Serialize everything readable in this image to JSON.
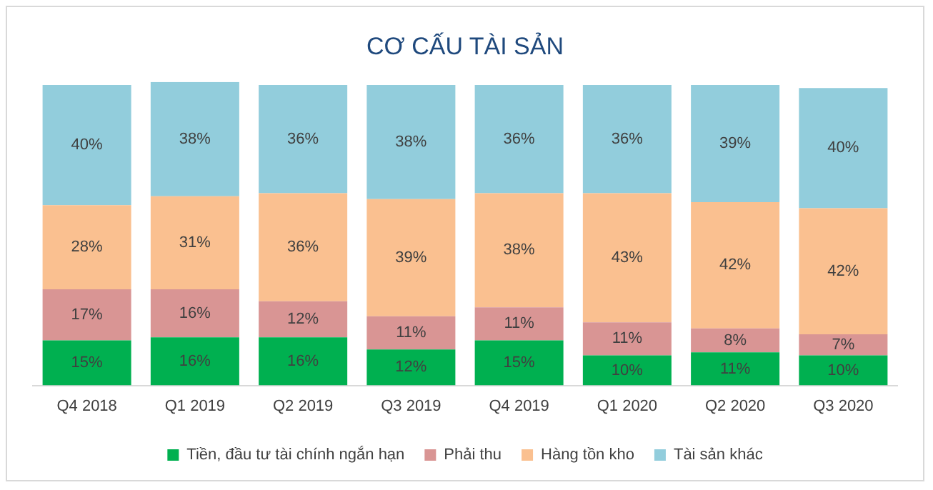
{
  "chart_data": {
    "type": "bar",
    "title": "CƠ CẤU TÀI SẢN",
    "stacked": true,
    "legend": "bottom",
    "grid": false,
    "tick_labels": "x",
    "categories": [
      "Q4 2018",
      "Q1 2019",
      "Q2 2019",
      "Q3 2019",
      "Q4 2019",
      "Q1 2020",
      "Q2 2020",
      "Q3 2020"
    ],
    "series": [
      {
        "name": "Tiền, đầu tư tài chính ngắn hạn",
        "color": "#00b050",
        "values": [
          15,
          16,
          16,
          12,
          15,
          10,
          11,
          10
        ],
        "value_labels": [
          "15%",
          "16%",
          "16%",
          "12%",
          "15%",
          "10%",
          "11%",
          "10%"
        ]
      },
      {
        "name": "Phải thu",
        "color": "#d99594",
        "values": [
          17,
          16,
          12,
          11,
          11,
          11,
          8,
          7
        ],
        "value_labels": [
          "17%",
          "16%",
          "12%",
          "11%",
          "11%",
          "11%",
          "8%",
          "7%"
        ]
      },
      {
        "name": "Hàng tồn kho",
        "color": "#fac090",
        "values": [
          28,
          31,
          36,
          39,
          38,
          43,
          42,
          42
        ],
        "value_labels": [
          "28%",
          "31%",
          "36%",
          "39%",
          "38%",
          "43%",
          "42%",
          "42%"
        ]
      },
      {
        "name": "Tài sản khác",
        "color": "#92cddc",
        "values": [
          40,
          38,
          36,
          38,
          36,
          36,
          39,
          40
        ],
        "value_labels": [
          "40%",
          "38%",
          "36%",
          "38%",
          "36%",
          "36%",
          "39%",
          "40%"
        ]
      }
    ]
  }
}
